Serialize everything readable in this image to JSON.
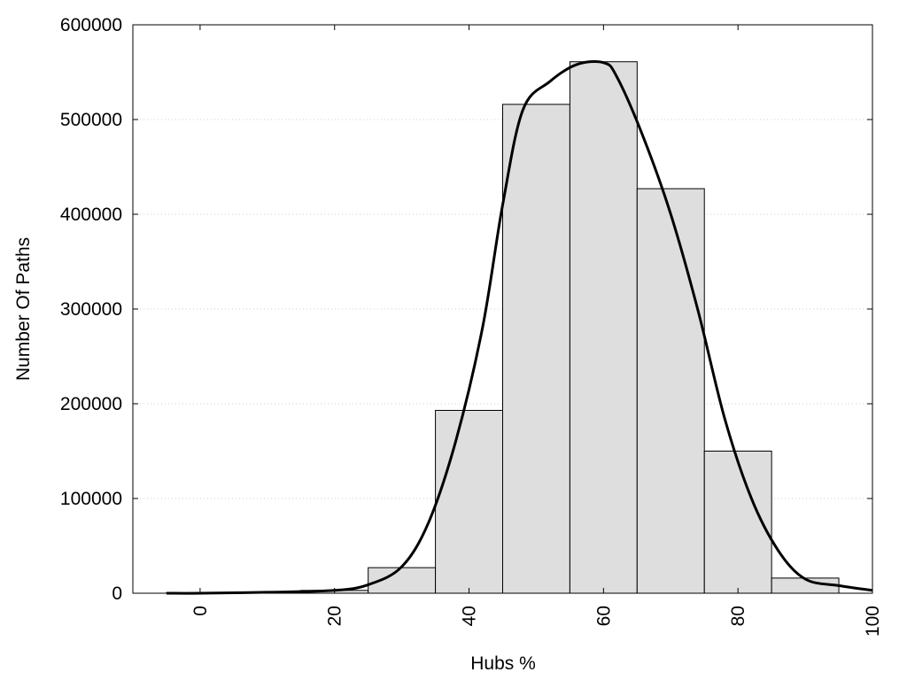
{
  "chart_data": {
    "type": "bar",
    "title": "",
    "xlabel": "Hubs %",
    "ylabel": "Number Of Paths",
    "xlim": [
      -10,
      100
    ],
    "ylim": [
      0,
      600000
    ],
    "x_ticks": [
      0,
      20,
      40,
      60,
      80,
      100
    ],
    "y_ticks": [
      0,
      100000,
      200000,
      300000,
      400000,
      500000,
      600000
    ],
    "grid": "horizontal-dotted",
    "bar_width": 10,
    "bars": [
      {
        "x": 0,
        "value": 500
      },
      {
        "x": 10,
        "value": 1000
      },
      {
        "x": 20,
        "value": 3000
      },
      {
        "x": 30,
        "value": 27000
      },
      {
        "x": 40,
        "value": 193000
      },
      {
        "x": 50,
        "value": 516000
      },
      {
        "x": 60,
        "value": 561000
      },
      {
        "x": 70,
        "value": 427000
      },
      {
        "x": 80,
        "value": 150000
      },
      {
        "x": 90,
        "value": 16000
      }
    ],
    "curve": {
      "x": [
        -5,
        0,
        10,
        20,
        25,
        30,
        34,
        38,
        42,
        45,
        48,
        52,
        56,
        60,
        62,
        66,
        70,
        74,
        78,
        82,
        86,
        90,
        95,
        100
      ],
      "y": [
        0,
        0,
        1000,
        3000,
        9000,
        28000,
        75000,
        160000,
        280000,
        410000,
        510000,
        540000,
        558000,
        560000,
        545000,
        480000,
        400000,
        300000,
        185000,
        100000,
        45000,
        15000,
        8000,
        3000
      ]
    },
    "colors": {
      "bar_fill": "#dedede",
      "bar_stroke": "#000000",
      "curve": "#000000",
      "grid": "#cccccc"
    }
  }
}
